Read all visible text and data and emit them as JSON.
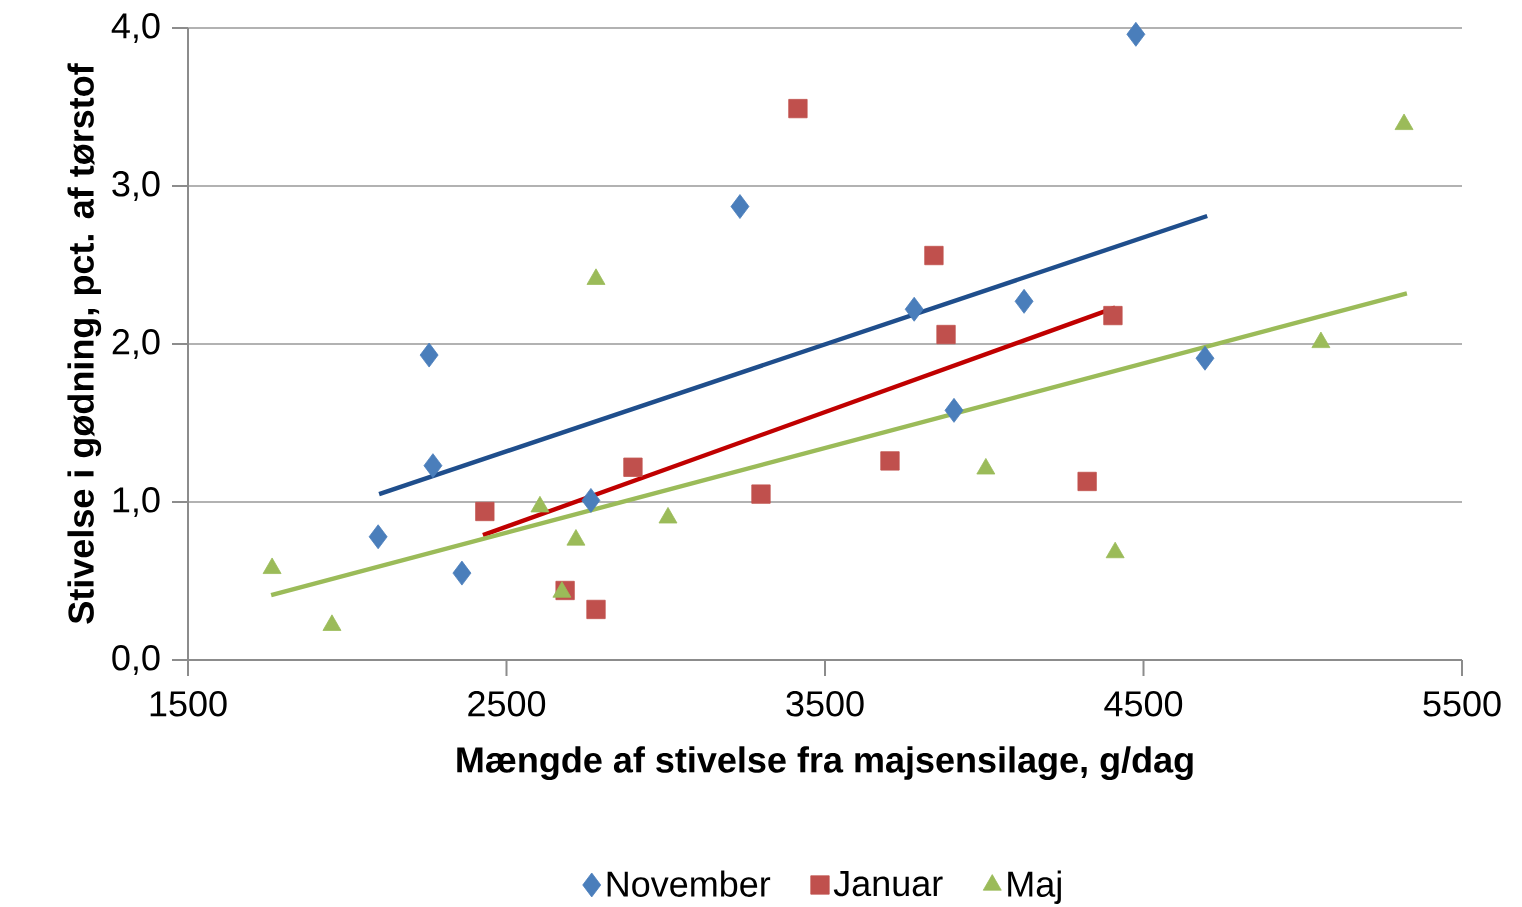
{
  "chart_data": {
    "type": "scatter",
    "xlabel": "Mængde af stivelse fra majsensilage, g/dag",
    "ylabel": "Stivelse i gødning, pct. af tørstof",
    "xlim": [
      1500,
      5500
    ],
    "xticks": [
      1500,
      2500,
      3500,
      4500,
      5500
    ],
    "ylim": [
      0,
      4
    ],
    "yticks": [
      {
        "value": 0,
        "label": "0,0"
      },
      {
        "value": 1,
        "label": "1,0"
      },
      {
        "value": 2,
        "label": "2,0"
      },
      {
        "value": 3,
        "label": "3,0"
      },
      {
        "value": 4,
        "label": "4,0"
      }
    ],
    "grid": "y",
    "legend": "bottom",
    "series": [
      {
        "name": "November",
        "color": "#4a7ebb",
        "marker": "diamond",
        "x": [
          2097,
          2257,
          2269,
          2360,
          2765,
          3233,
          3780,
          3905,
          4125,
          4476,
          4693
        ],
        "values": [
          0.78,
          1.93,
          1.23,
          0.55,
          1.01,
          2.87,
          2.22,
          1.58,
          2.27,
          3.96,
          1.91
        ]
      },
      {
        "name": "Januar",
        "color": "#c0504d",
        "marker": "square",
        "x": [
          2432,
          2684,
          2781,
          2897,
          3299,
          3415,
          3704,
          3842,
          3880,
          4323,
          4404
        ],
        "values": [
          0.94,
          0.44,
          0.32,
          1.22,
          1.05,
          3.49,
          1.26,
          2.56,
          2.06,
          1.13,
          2.18
        ]
      },
      {
        "name": "Maj",
        "color": "#9bbb59",
        "marker": "triangle",
        "x": [
          1764,
          1952,
          2605,
          2674,
          2718,
          2781,
          3007,
          4005,
          4411,
          5057,
          5318
        ],
        "values": [
          0.58,
          0.22,
          0.97,
          0.43,
          0.76,
          2.41,
          0.9,
          1.21,
          0.68,
          2.01,
          3.39
        ]
      },
      {
        "type": "line",
        "color": "#1f4e8c",
        "marker": "none",
        "x": [
          2100,
          4700
        ],
        "values": [
          1.05,
          2.81
        ]
      },
      {
        "type": "line",
        "color": "#c00000",
        "marker": "none",
        "x": [
          2426,
          4411
        ],
        "values": [
          0.79,
          2.23
        ]
      },
      {
        "type": "line",
        "color": "#9bbb59",
        "marker": "none",
        "x": [
          1761,
          5327
        ],
        "values": [
          0.41,
          2.32
        ]
      }
    ]
  }
}
